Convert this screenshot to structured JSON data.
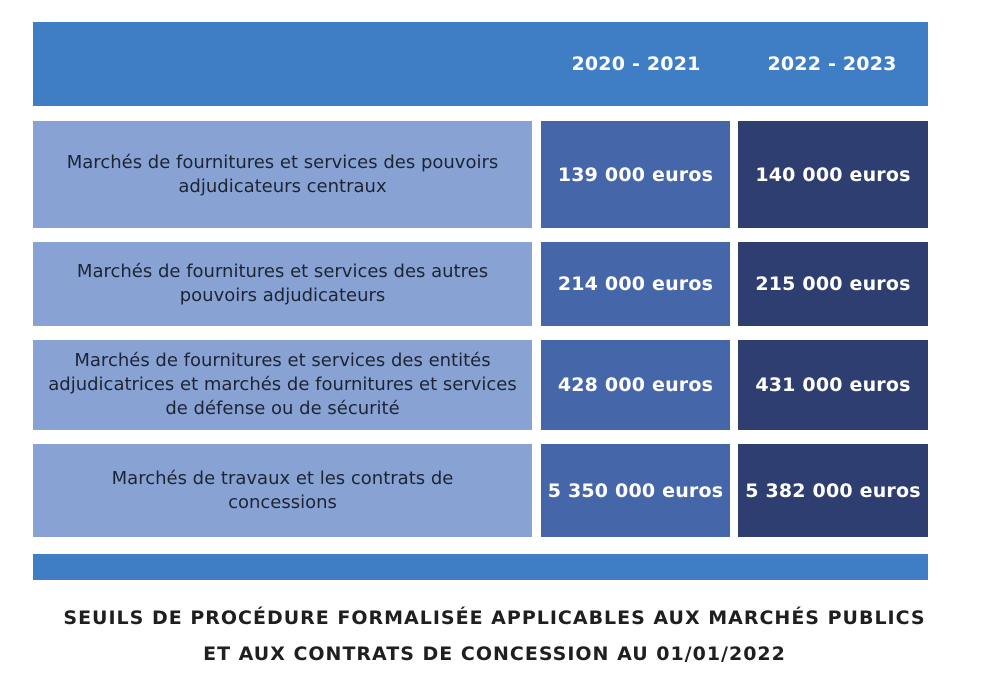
{
  "table": {
    "columns": [
      "2020 - 2021",
      "2022 - 2023"
    ],
    "rows": [
      {
        "label": "Marchés de fournitures et services des pouvoirs adjudicateurs centraux",
        "values": [
          "139 000 euros",
          "140 000 euros"
        ]
      },
      {
        "label": "Marchés de fournitures et services des autres pouvoirs adjudicateurs",
        "values": [
          "214 000 euros",
          "215 000 euros"
        ]
      },
      {
        "label": "Marchés de fournitures et services des entités adjudicatrices et marchés de fournitures et services de défense ou de sécurité",
        "values": [
          "428 000 euros",
          "431 000 euros"
        ]
      },
      {
        "label": "Marchés de travaux et les contrats de concessions",
        "values": [
          "5 350 000 euros",
          "5 382 000 euros"
        ]
      }
    ]
  },
  "caption": {
    "line1": "SEUILS DE PROCÉDURE FORMALISÉE APPLICABLES AUX MARCHÉS PUBLICS",
    "line2": "ET AUX CONTRATS DE CONCESSION AU 01/01/2022"
  },
  "colors": {
    "header_blue": "#3f7ec4",
    "label_blue": "#87a2d3",
    "value_blue_2020": "#4566a8",
    "value_blue_2022": "#2e3e70"
  }
}
